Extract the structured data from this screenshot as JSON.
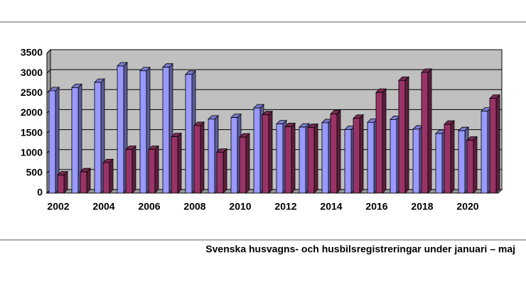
{
  "chart_data": {
    "type": "bar",
    "caption": "Svenska husvagns- och husbilsregistreringar under januari – maj",
    "categories": [
      "2002",
      null,
      "2004",
      null,
      "2006",
      null,
      "2008",
      null,
      "2010",
      null,
      "2012",
      null,
      "2014",
      null,
      "2016",
      null,
      "2018",
      null,
      "2020",
      null
    ],
    "series": [
      {
        "color": "#9999ff",
        "values": [
          2560,
          2640,
          2770,
          3180,
          3060,
          3150,
          2970,
          1850,
          1890,
          2130,
          1730,
          1650,
          1760,
          1590,
          1770,
          1840,
          1600,
          1490,
          1560,
          2050
        ]
      },
      {
        "color": "#993366",
        "values": [
          450,
          530,
          760,
          1090,
          1090,
          1410,
          1690,
          1020,
          1400,
          1960,
          1660,
          1640,
          1980,
          1870,
          2520,
          2820,
          3020,
          1720,
          1320,
          2370
        ]
      }
    ],
    "ylim": [
      0,
      3500
    ],
    "yticks": [
      0,
      500,
      1000,
      1500,
      2000,
      2500,
      3000,
      3500
    ],
    "grid": true
  }
}
